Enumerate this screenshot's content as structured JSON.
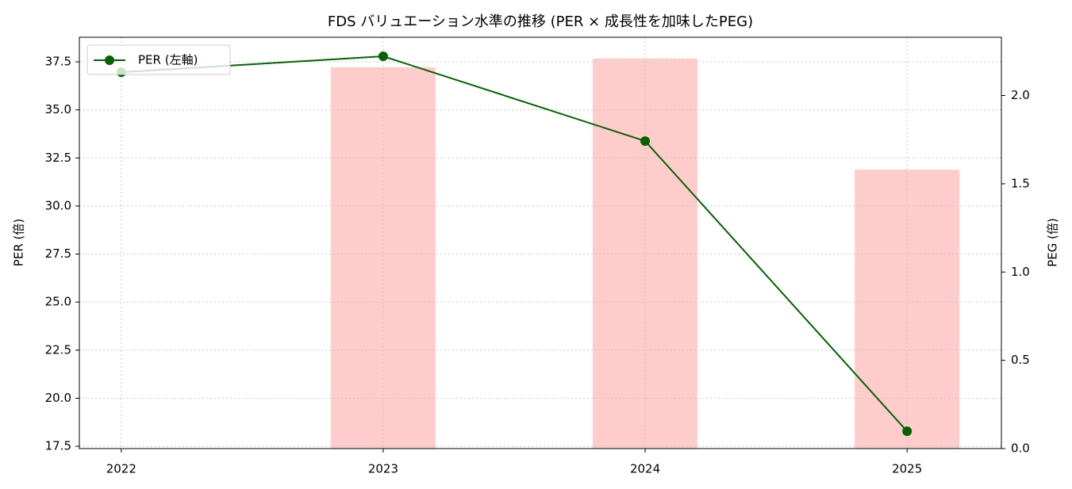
{
  "chart_data": {
    "type": "combo",
    "title": "FDS バリュエーション水準の推移 (PER × 成長性を加味したPEG)",
    "y_label": "PER (倍)",
    "y2_label": "PEG (倍)",
    "x": [
      2022,
      2023,
      2024,
      2025
    ],
    "xlim": [
      2021.84,
      2025.36
    ],
    "xticks": [
      2022,
      2023,
      2024,
      2025
    ],
    "ylim": [
      17.38,
      38.78
    ],
    "yticks": [
      17.5,
      {
        "value": 20,
        "label": "20.0"
      },
      22.5,
      {
        "value": 25,
        "label": "25.0"
      },
      27.5,
      {
        "value": 30,
        "label": "30.0"
      },
      32.5,
      {
        "value": 35,
        "label": "35.0"
      },
      37.5
    ],
    "y2lim": [
      0,
      2.33
    ],
    "y2ticks": [
      {
        "value": 0,
        "label": "0.0"
      },
      0.5,
      {
        "value": 1,
        "label": "1.0"
      },
      1.5,
      {
        "value": 2,
        "label": "2.0"
      }
    ],
    "grid": true,
    "legend": "upper-left",
    "bar_width": 0.4,
    "series": [
      {
        "name": "PER (左軸)",
        "type": "line",
        "color": "#006400",
        "values": [
          36.96,
          37.79,
          33.38,
          18.28
        ]
      },
      {
        "type": "bar",
        "axis": "y2",
        "color": "#ffcccc",
        "values": [
          null,
          2.16,
          2.21,
          1.58
        ]
      }
    ]
  }
}
